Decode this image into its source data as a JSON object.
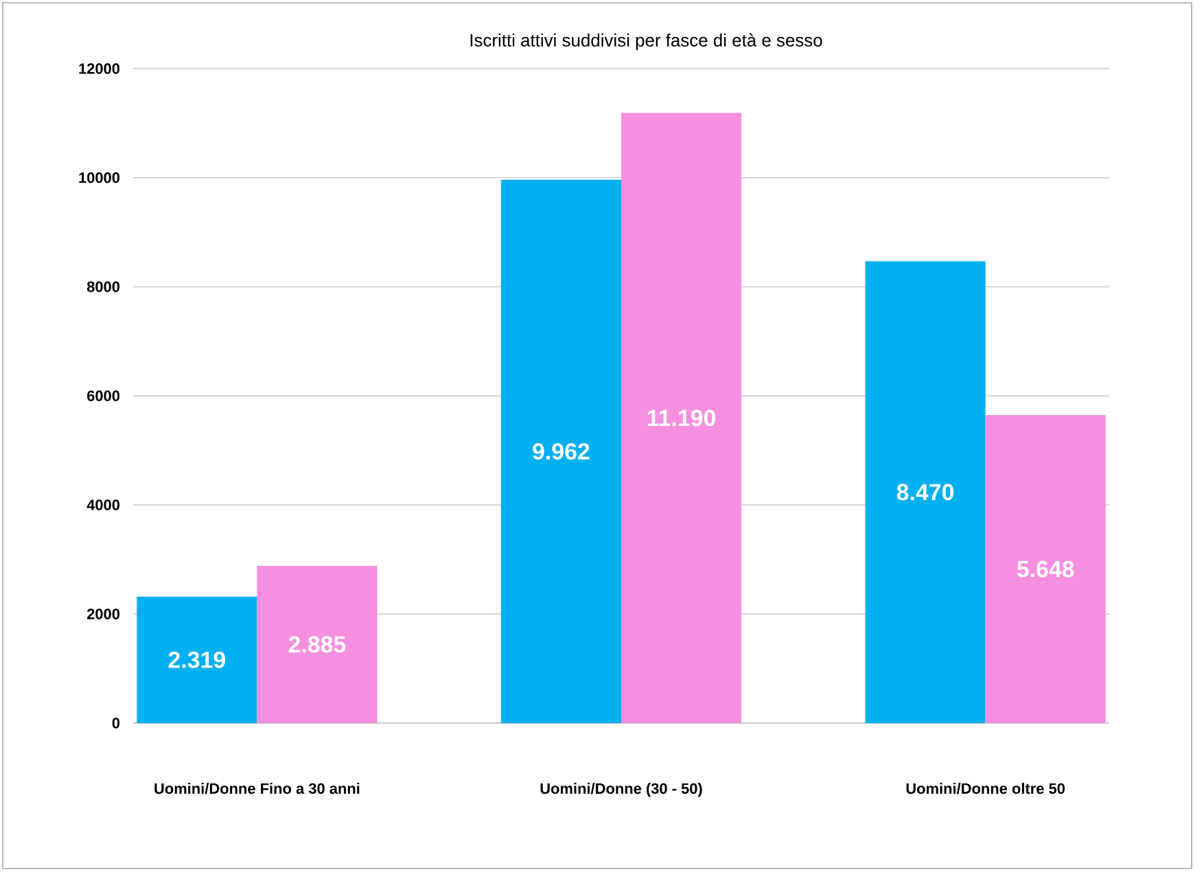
{
  "chart_data": {
    "type": "bar",
    "title": "Iscritti attivi suddivisi per fasce di età e sesso",
    "categories": [
      "Uomini/Donne Fino a 30 anni",
      "Uomini/Donne  (30 - 50)",
      "Uomini/Donne oltre 50"
    ],
    "series": [
      {
        "color": "#00b0f0",
        "values": [
          2319,
          9962,
          8470
        ],
        "value_labels": [
          "2.319",
          "9.962",
          "8.470"
        ]
      },
      {
        "color": "#f78fe0",
        "values": [
          2885,
          11190,
          5648
        ],
        "value_labels": [
          "2.885",
          "11.190",
          "5.648"
        ]
      }
    ],
    "ylim": [
      0,
      12000
    ],
    "yticks": [
      0,
      2000,
      4000,
      6000,
      8000,
      10000,
      12000
    ],
    "grid": "y"
  }
}
